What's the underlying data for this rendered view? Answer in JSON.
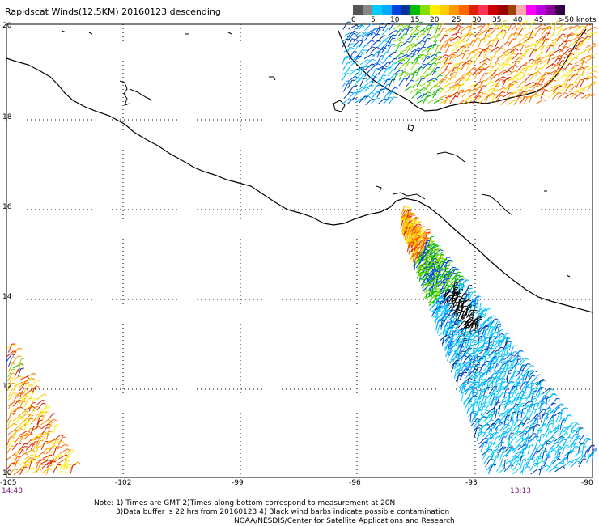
{
  "title": "Rapidscat Winds(12.5KM) 20160123 descending",
  "colorbar": {
    "colors": [
      "#555555",
      "#888888",
      "#00ccff",
      "#00aaff",
      "#0044dd",
      "#003399",
      "#00bb00",
      "#88dd00",
      "#ffee00",
      "#ffcc00",
      "#ff9900",
      "#ff6600",
      "#dd2200",
      "#ff3355",
      "#cc0000",
      "#990000",
      "#994400",
      "#ffaaaa",
      "#ff00ff",
      "#bb00dd",
      "#880099",
      "#330044"
    ],
    "tick_labels": [
      "0",
      "5",
      "10",
      "15",
      "20",
      "25",
      "30",
      "35",
      "40",
      "45",
      ">50 knots"
    ]
  },
  "map": {
    "lon_range": [
      -105,
      -90
    ],
    "lat_range": [
      10,
      20
    ],
    "lat_labels": [
      "20",
      "18",
      "16",
      "14",
      "12",
      "10"
    ],
    "lon_labels": [
      "-105",
      "-102",
      "-99",
      "-96",
      "-93",
      "-90"
    ],
    "grid": "dotted"
  },
  "times": {
    "left": "14:48",
    "right": "13:13"
  },
  "notes": {
    "line1": "Note: 1) Times are GMT 2)Times along bottom correspond to measurement at 20N",
    "line2": "3)Data buffer is 22 hrs from 20160123 4) Black wind barbs indicate possible contamination",
    "line3": "NOAA/NESDIS/Center for Satellite Applications and Research"
  }
}
